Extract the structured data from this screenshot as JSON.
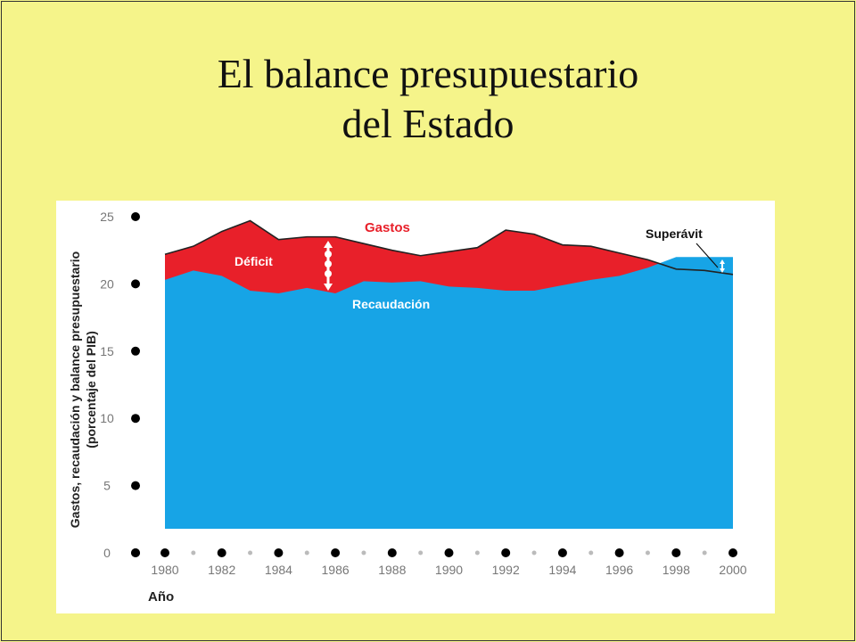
{
  "slide": {
    "title_line1": "El balance presupuestario",
    "title_line2": "del Estado"
  },
  "colors": {
    "background": "#f5f48a",
    "gastos": "#e8202a",
    "recaudacion": "#17a4e6",
    "line": "#222222"
  },
  "chart_data": {
    "type": "area",
    "xlabel": "Año",
    "ylabel_line1": "Gastos, recaudación y balance presupuestario",
    "ylabel_line2": "(porcentaje del PIB)",
    "ylim": [
      0,
      25
    ],
    "xlim": [
      1980,
      2000
    ],
    "y_ticks": [
      "0",
      "5",
      "10",
      "15",
      "20",
      "25"
    ],
    "x_ticks": [
      "1980",
      "1982",
      "1984",
      "1986",
      "1988",
      "1990",
      "1992",
      "1994",
      "1996",
      "1998",
      "2000"
    ],
    "x": [
      1980,
      1981,
      1982,
      1983,
      1984,
      1985,
      1986,
      1987,
      1988,
      1989,
      1990,
      1991,
      1992,
      1993,
      1994,
      1995,
      1996,
      1997,
      1998,
      1999,
      2000
    ],
    "series": [
      {
        "name": "Gastos",
        "values": [
          22.2,
          22.8,
          23.9,
          24.7,
          23.3,
          23.5,
          23.5,
          23.0,
          22.5,
          22.1,
          22.4,
          22.7,
          24.0,
          23.7,
          22.9,
          22.8,
          22.3,
          21.8,
          21.1,
          21.0,
          20.7
        ]
      },
      {
        "name": "Recaudación",
        "values": [
          20.3,
          21.0,
          20.6,
          19.5,
          19.3,
          19.7,
          19.3,
          20.2,
          20.1,
          20.2,
          19.8,
          19.7,
          19.5,
          19.5,
          19.9,
          20.3,
          20.6,
          21.2,
          22.0,
          22.0,
          22.0
        ]
      }
    ],
    "annotations": {
      "deficit": "Déficit",
      "superavit": "Superávit",
      "gastos": "Gastos",
      "recaudacion": "Recaudación"
    },
    "grid": false
  }
}
